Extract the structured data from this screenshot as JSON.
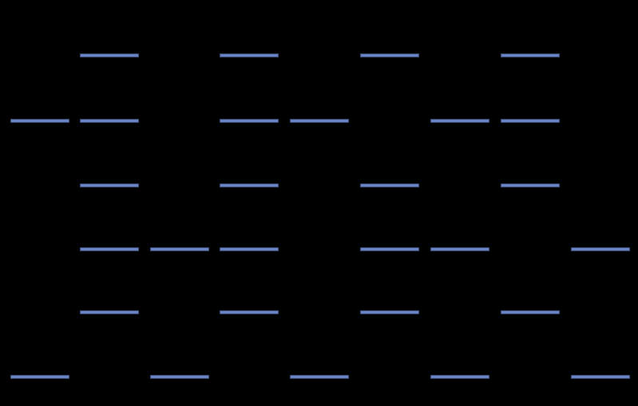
{
  "colors": {
    "background": "#000000",
    "segment_fill": "#6b84c8",
    "segment_border": "#3b4a70"
  },
  "grid": {
    "rows": [
      [
        0,
        1,
        0,
        1,
        0,
        1,
        0,
        1,
        0
      ],
      [
        1,
        1,
        0,
        1,
        1,
        0,
        1,
        1,
        0
      ],
      [
        0,
        1,
        0,
        1,
        0,
        1,
        0,
        1,
        0
      ],
      [
        0,
        1,
        1,
        1,
        0,
        1,
        1,
        0,
        1
      ],
      [
        0,
        1,
        0,
        1,
        0,
        1,
        0,
        1,
        0
      ],
      [
        1,
        0,
        1,
        0,
        1,
        0,
        1,
        0,
        1
      ]
    ]
  }
}
